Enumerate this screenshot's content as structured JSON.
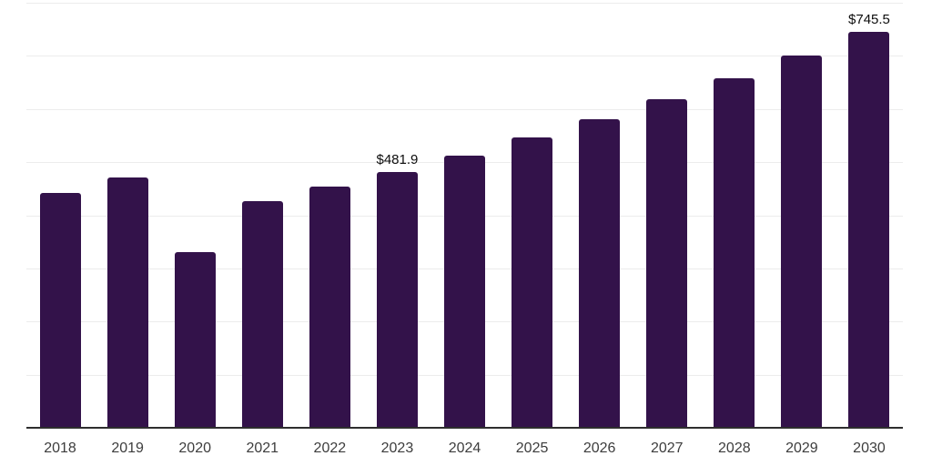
{
  "chart_data": {
    "type": "bar",
    "title": "",
    "xlabel": "",
    "ylabel": "",
    "categories": [
      "2018",
      "2019",
      "2020",
      "2021",
      "2022",
      "2023",
      "2024",
      "2025",
      "2026",
      "2027",
      "2028",
      "2029",
      "2030"
    ],
    "values": [
      442.1,
      471.5,
      329.8,
      427.0,
      454.5,
      481.9,
      512.9,
      545.9,
      581.0,
      618.3,
      658.1,
      700.4,
      745.5
    ],
    "data_labels": [
      {
        "category": "2023",
        "text": "$481.9"
      },
      {
        "category": "2030",
        "text": "$745.5"
      }
    ],
    "ylim": [
      0,
      800
    ],
    "grid_interval": 100,
    "grid": "horizontal-only",
    "y_tick_labels_visible": false,
    "legend_position": "none",
    "colors": {
      "bar": "#33124a",
      "gridline": "#ececec",
      "axis_line": "#2e2e2e",
      "tick_text": "#3d3d3d",
      "data_label_text": "#0d0d0d",
      "background": "#ffffff"
    }
  }
}
